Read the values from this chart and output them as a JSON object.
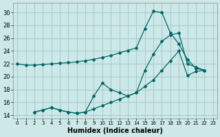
{
  "background_color": "#cce8e8",
  "grid_color": "#aacccc",
  "line_color": "#006666",
  "xlabel": "Humidex (Indice chaleur)",
  "ylim": [
    13.5,
    31.5
  ],
  "xlim": [
    -0.5,
    23.5
  ],
  "yticks": [
    14,
    16,
    18,
    20,
    22,
    24,
    26,
    28,
    30
  ],
  "xticks": [
    0,
    1,
    2,
    3,
    4,
    5,
    6,
    7,
    8,
    9,
    10,
    11,
    12,
    13,
    14,
    15,
    16,
    17,
    18,
    19,
    20,
    21,
    22,
    23
  ],
  "curve1_x": [
    0,
    1,
    2,
    3,
    4,
    5,
    6,
    7,
    8,
    9,
    10,
    11,
    12,
    13,
    14,
    15,
    16,
    17,
    18,
    19,
    20,
    21,
    22
  ],
  "curve1_y": [
    22.0,
    21.8,
    21.8,
    21.9,
    22.0,
    22.1,
    22.2,
    22.3,
    22.5,
    22.7,
    23.0,
    23.3,
    23.7,
    24.1,
    24.5,
    27.5,
    30.2,
    30.0,
    26.8,
    25.1,
    22.7,
    21.3,
    21.0
  ],
  "curve2_x": [
    2,
    3,
    4,
    5,
    6,
    7,
    8,
    9,
    10,
    11,
    12,
    13,
    14,
    15,
    16,
    17,
    18,
    19,
    20,
    21,
    22
  ],
  "curve2_y": [
    14.5,
    14.8,
    15.2,
    14.8,
    14.5,
    14.3,
    14.5,
    17.0,
    19.0,
    18.0,
    17.5,
    17.0,
    17.5,
    21.0,
    23.5,
    25.5,
    26.5,
    26.8,
    22.0,
    21.5,
    21.0
  ],
  "curve3_x": [
    2,
    3,
    4,
    5,
    6,
    7,
    8,
    9,
    10,
    11,
    12,
    13,
    14,
    15,
    16,
    17,
    18,
    19,
    20,
    21,
    22
  ],
  "curve3_y": [
    14.5,
    14.8,
    15.2,
    14.8,
    14.5,
    14.3,
    14.5,
    15.0,
    15.5,
    16.0,
    16.5,
    17.0,
    17.5,
    18.5,
    19.5,
    21.0,
    22.5,
    24.0,
    20.2,
    20.8,
    21.0
  ]
}
